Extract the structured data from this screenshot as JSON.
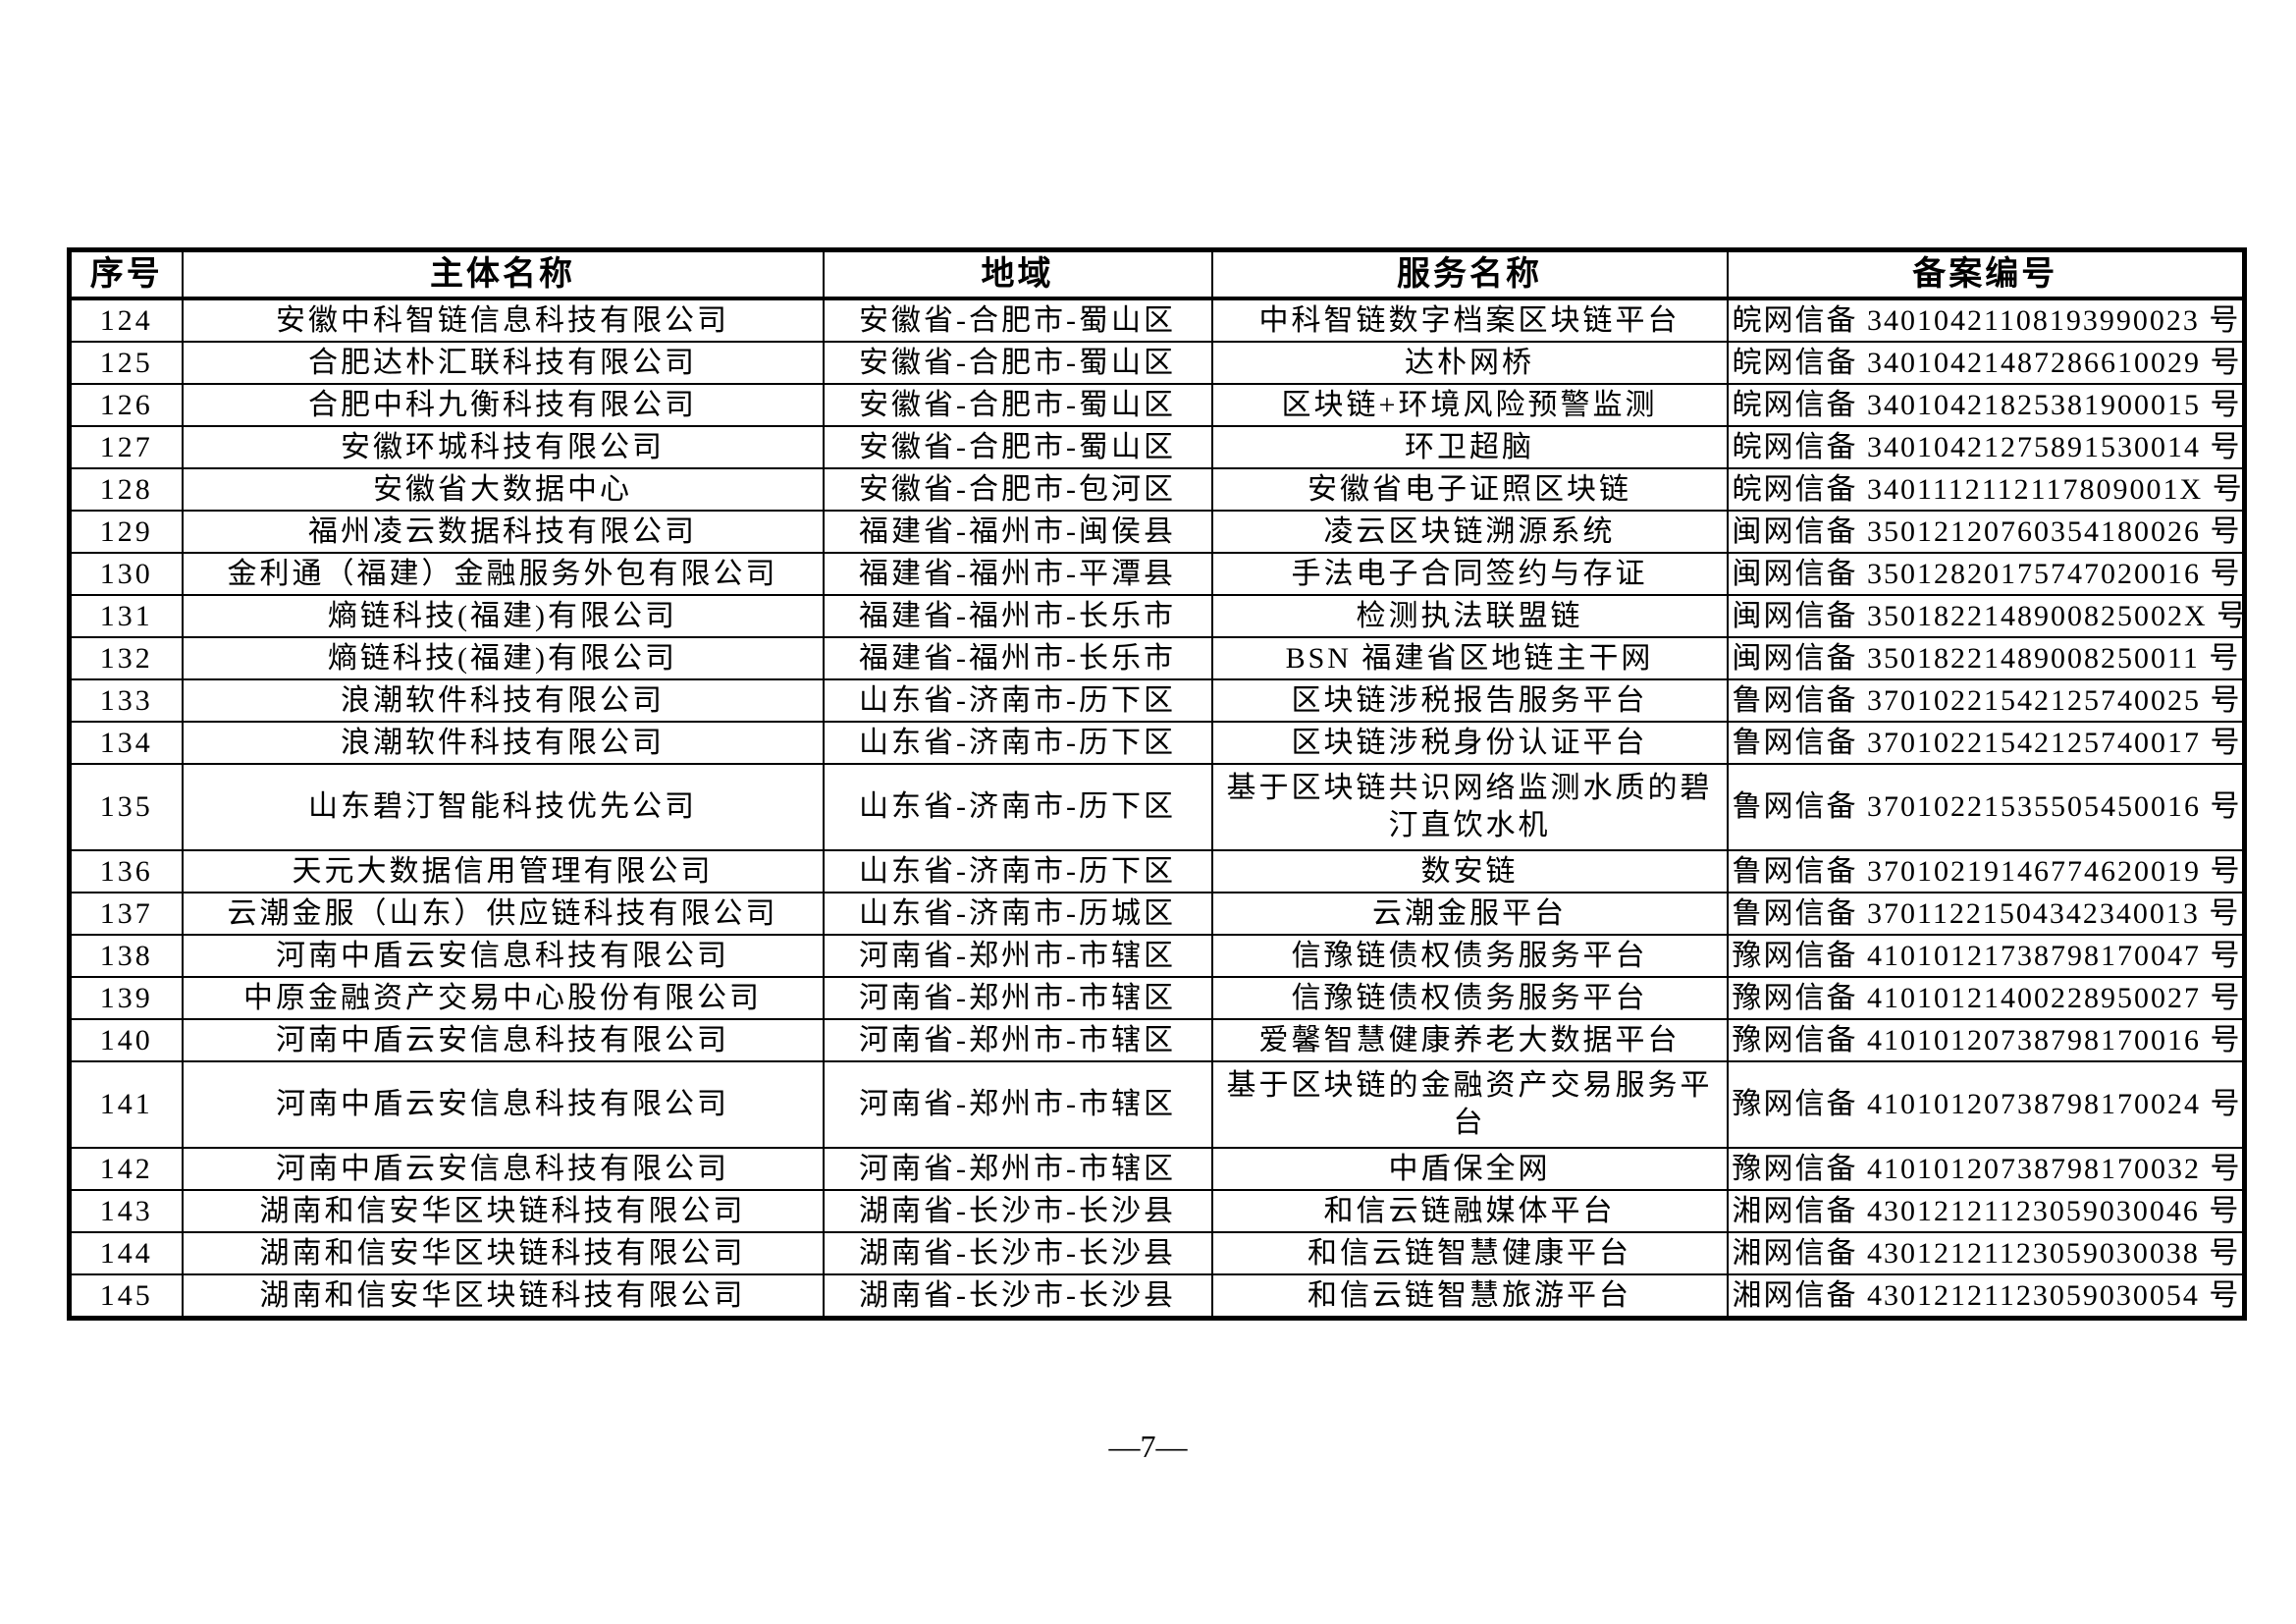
{
  "table": {
    "headers": [
      "序号",
      "主体名称",
      "地域",
      "服务名称",
      "备案编号"
    ],
    "rows": [
      {
        "no": "124",
        "entity": "安徽中科智链信息科技有限公司",
        "region": "安徽省-合肥市-蜀山区",
        "service": "中科智链数字档案区块链平台",
        "reg": "皖网信备 34010421108193990023 号"
      },
      {
        "no": "125",
        "entity": "合肥达朴汇联科技有限公司",
        "region": "安徽省-合肥市-蜀山区",
        "service": "达朴网桥",
        "reg": "皖网信备 34010421487286610029 号"
      },
      {
        "no": "126",
        "entity": "合肥中科九衡科技有限公司",
        "region": "安徽省-合肥市-蜀山区",
        "service": "区块链+环境风险预警监测",
        "reg": "皖网信备 34010421825381900015 号"
      },
      {
        "no": "127",
        "entity": "安徽环城科技有限公司",
        "region": "安徽省-合肥市-蜀山区",
        "service": "环卫超脑",
        "reg": "皖网信备 34010421275891530014 号"
      },
      {
        "no": "128",
        "entity": "安徽省大数据中心",
        "region": "安徽省-合肥市-包河区",
        "service": "安徽省电子证照区块链",
        "reg": "皖网信备 3401112112117809001X 号"
      },
      {
        "no": "129",
        "entity": "福州凌云数据科技有限公司",
        "region": "福建省-福州市-闽侯县",
        "service": "凌云区块链溯源系统",
        "reg": "闽网信备 35012120760354180026 号"
      },
      {
        "no": "130",
        "entity": "金利通（福建）金融服务外包有限公司",
        "region": "福建省-福州市-平潭县",
        "service": "手法电子合同签约与存证",
        "reg": "闽网信备 35012820175747020016 号"
      },
      {
        "no": "131",
        "entity": "熵链科技(福建)有限公司",
        "region": "福建省-福州市-长乐市",
        "service": "检测执法联盟链",
        "reg": "闽网信备 3501822148900825002X 号"
      },
      {
        "no": "132",
        "entity": "熵链科技(福建)有限公司",
        "region": "福建省-福州市-长乐市",
        "service": "BSN 福建省区地链主干网",
        "reg": "闽网信备 35018221489008250011 号"
      },
      {
        "no": "133",
        "entity": "浪潮软件科技有限公司",
        "region": "山东省-济南市-历下区",
        "service": "区块链涉税报告服务平台",
        "reg": "鲁网信备 37010221542125740025 号"
      },
      {
        "no": "134",
        "entity": "浪潮软件科技有限公司",
        "region": "山东省-济南市-历下区",
        "service": "区块链涉税身份认证平台",
        "reg": "鲁网信备 37010221542125740017 号"
      },
      {
        "no": "135",
        "entity": "山东碧汀智能科技优先公司",
        "region": "山东省-济南市-历下区",
        "service": "基于区块链共识网络监测水质的碧汀直饮水机",
        "reg": "鲁网信备 37010221535505450016 号",
        "double": true
      },
      {
        "no": "136",
        "entity": "天元大数据信用管理有限公司",
        "region": "山东省-济南市-历下区",
        "service": "数安链",
        "reg": "鲁网信备 37010219146774620019 号"
      },
      {
        "no": "137",
        "entity": "云潮金服（山东）供应链科技有限公司",
        "region": "山东省-济南市-历城区",
        "service": "云潮金服平台",
        "reg": "鲁网信备 37011221504342340013 号"
      },
      {
        "no": "138",
        "entity": "河南中盾云安信息科技有限公司",
        "region": "河南省-郑州市-市辖区",
        "service": "信豫链债权债务服务平台",
        "reg": "豫网信备 41010121738798170047 号"
      },
      {
        "no": "139",
        "entity": "中原金融资产交易中心股份有限公司",
        "region": "河南省-郑州市-市辖区",
        "service": "信豫链债权债务服务平台",
        "reg": "豫网信备 41010121400228950027 号"
      },
      {
        "no": "140",
        "entity": "河南中盾云安信息科技有限公司",
        "region": "河南省-郑州市-市辖区",
        "service": "爱馨智慧健康养老大数据平台",
        "reg": "豫网信备 41010120738798170016 号"
      },
      {
        "no": "141",
        "entity": "河南中盾云安信息科技有限公司",
        "region": "河南省-郑州市-市辖区",
        "service": "基于区块链的金融资产交易服务平台",
        "reg": "豫网信备 41010120738798170024 号",
        "double": true
      },
      {
        "no": "142",
        "entity": "河南中盾云安信息科技有限公司",
        "region": "河南省-郑州市-市辖区",
        "service": "中盾保全网",
        "reg": "豫网信备 41010120738798170032 号"
      },
      {
        "no": "143",
        "entity": "湖南和信安华区块链科技有限公司",
        "region": "湖南省-长沙市-长沙县",
        "service": "和信云链融媒体平台",
        "reg": "湘网信备 43012121123059030046 号"
      },
      {
        "no": "144",
        "entity": "湖南和信安华区块链科技有限公司",
        "region": "湖南省-长沙市-长沙县",
        "service": "和信云链智慧健康平台",
        "reg": "湘网信备 43012121123059030038 号"
      },
      {
        "no": "145",
        "entity": "湖南和信安华区块链科技有限公司",
        "region": "湖南省-长沙市-长沙县",
        "service": "和信云链智慧旅游平台",
        "reg": "湘网信备 43012121123059030054 号"
      }
    ]
  },
  "page_number": "—7—"
}
